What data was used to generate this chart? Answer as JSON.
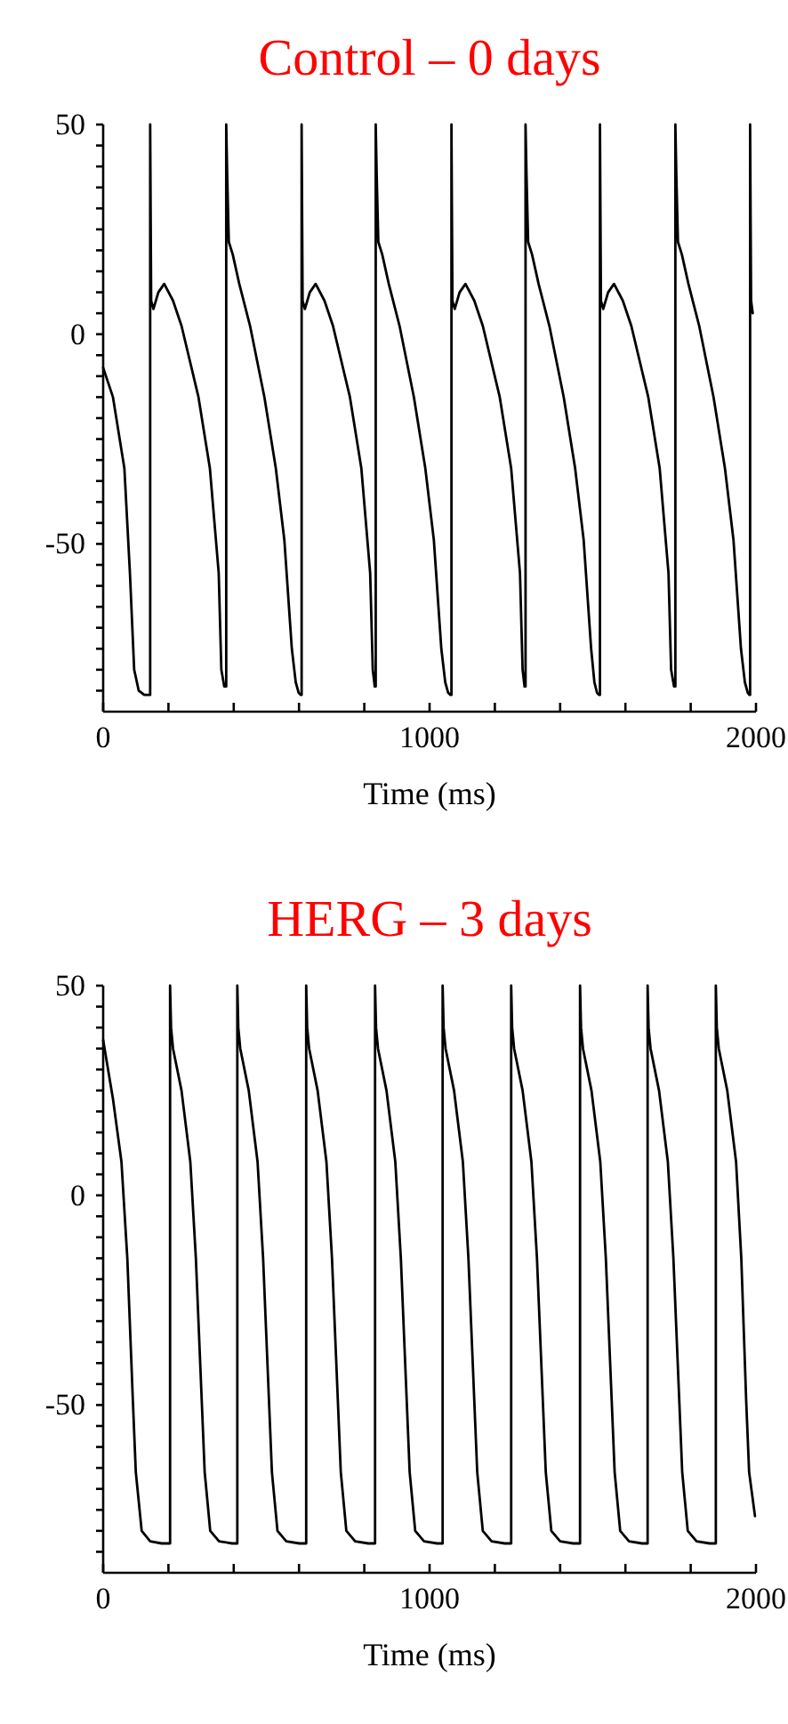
{
  "chart_data": [
    {
      "type": "line",
      "title": "Control – 0 days",
      "xlabel": "Time (ms)",
      "xlim": [
        0,
        2000
      ],
      "ylim": [
        -90,
        50
      ],
      "xticks": [
        0,
        {
          "value": 200,
          "label": null
        },
        {
          "value": 400,
          "label": null
        },
        {
          "value": 600,
          "label": null
        },
        {
          "value": 800,
          "label": null
        },
        1000,
        {
          "value": 1200,
          "label": null
        },
        {
          "value": 1400,
          "label": null
        },
        {
          "value": 1600,
          "label": null
        },
        {
          "value": 1800,
          "label": null
        },
        2000
      ],
      "yticks": [
        50,
        {
          "value": 45,
          "label": null
        },
        {
          "value": 40,
          "label": null
        },
        {
          "value": 35,
          "label": null
        },
        {
          "value": 30,
          "label": null
        },
        {
          "value": 25,
          "label": null
        },
        {
          "value": 20,
          "label": null
        },
        {
          "value": 15,
          "label": null
        },
        {
          "value": 10,
          "label": null
        },
        {
          "value": 5,
          "label": null
        },
        0,
        {
          "value": -5,
          "label": null
        },
        {
          "value": -10,
          "label": null
        },
        {
          "value": -15,
          "label": null
        },
        {
          "value": -20,
          "label": null
        },
        {
          "value": -25,
          "label": null
        },
        {
          "value": -30,
          "label": null
        },
        {
          "value": -35,
          "label": null
        },
        {
          "value": -40,
          "label": null
        },
        {
          "value": -45,
          "label": null
        },
        -50,
        {
          "value": -55,
          "label": null
        },
        {
          "value": -60,
          "label": null
        },
        {
          "value": -65,
          "label": null
        },
        {
          "value": -70,
          "label": null
        },
        {
          "value": -75,
          "label": null
        },
        {
          "value": -80,
          "label": null
        },
        {
          "value": -85,
          "label": null
        }
      ],
      "series": [
        {
          "color": "#000000",
          "x": [
            0,
            30,
            65,
            82,
            95,
            109,
            126,
            140,
            144,
            144,
            147,
            154,
            169,
            187,
            214,
            240,
            292,
            327,
            354,
            362,
            371,
            377,
            377,
            380,
            385,
            397,
            417,
            450,
            494,
            529,
            555,
            578,
            590,
            599,
            605,
            608,
            608,
            611,
            618,
            633,
            651,
            678,
            704,
            756,
            791,
            818,
            826,
            832,
            835,
            835,
            838,
            843,
            855,
            875,
            908,
            952,
            987,
            1013,
            1036,
            1048,
            1057,
            1064,
            1067,
            1067,
            1070,
            1077,
            1092,
            1110,
            1137,
            1163,
            1215,
            1250,
            1277,
            1285,
            1291,
            1294,
            1294,
            1297,
            1302,
            1314,
            1334,
            1367,
            1411,
            1446,
            1472,
            1495,
            1505,
            1513,
            1519,
            1522,
            1522,
            1525,
            1532,
            1547,
            1565,
            1592,
            1618,
            1670,
            1705,
            1732,
            1740,
            1749,
            1753,
            1753,
            1756,
            1761,
            1773,
            1793,
            1826,
            1870,
            1905,
            1931,
            1954,
            1966,
            1975,
            1980,
            1982,
            1982,
            1985,
            1990
          ],
          "values": [
            -8,
            -15,
            -32,
            -57,
            -80,
            -85,
            -86,
            -86,
            -86,
            50,
            8,
            6,
            10,
            12,
            8,
            2,
            -15,
            -32,
            -57,
            -80,
            -84,
            -84,
            50,
            38,
            22,
            19,
            12,
            2,
            -15,
            -32,
            -49,
            -75,
            -83,
            -85.5,
            -86,
            -86,
            50,
            8,
            6,
            10,
            12,
            8,
            2,
            -15,
            -32,
            -57,
            -80,
            -84,
            -84,
            50,
            38,
            22,
            19,
            12,
            2,
            -15,
            -32,
            -49,
            -75,
            -83,
            -85.5,
            -86,
            -86,
            50,
            8,
            6,
            10,
            12,
            8,
            2,
            -15,
            -32,
            -57,
            -80,
            -84,
            -84,
            50,
            38,
            22,
            19,
            12,
            2,
            -15,
            -32,
            -49,
            -75,
            -83,
            -85.5,
            -86,
            -86,
            50,
            8,
            6,
            10,
            12,
            8,
            2,
            -15,
            -32,
            -57,
            -80,
            -84,
            -84,
            50,
            38,
            22,
            19,
            12,
            2,
            -15,
            -32,
            -49,
            -75,
            -83,
            -85.5,
            -86,
            -86,
            50,
            8,
            5
          ]
        }
      ]
    },
    {
      "type": "line",
      "title": "HERG – 3 days",
      "xlabel": "Time (ms)",
      "xlim": [
        0,
        2000
      ],
      "ylim": [
        -90,
        50
      ],
      "xticks": [
        0,
        {
          "value": 200,
          "label": null
        },
        {
          "value": 400,
          "label": null
        },
        {
          "value": 600,
          "label": null
        },
        {
          "value": 800,
          "label": null
        },
        1000,
        {
          "value": 1200,
          "label": null
        },
        {
          "value": 1400,
          "label": null
        },
        {
          "value": 1600,
          "label": null
        },
        {
          "value": 1800,
          "label": null
        },
        2000
      ],
      "yticks": [
        50,
        {
          "value": 45,
          "label": null
        },
        {
          "value": 40,
          "label": null
        },
        {
          "value": 35,
          "label": null
        },
        {
          "value": 30,
          "label": null
        },
        {
          "value": 25,
          "label": null
        },
        {
          "value": 20,
          "label": null
        },
        {
          "value": 15,
          "label": null
        },
        {
          "value": 10,
          "label": null
        },
        {
          "value": 5,
          "label": null
        },
        0,
        {
          "value": -5,
          "label": null
        },
        {
          "value": -10,
          "label": null
        },
        {
          "value": -15,
          "label": null
        },
        {
          "value": -20,
          "label": null
        },
        {
          "value": -25,
          "label": null
        },
        {
          "value": -30,
          "label": null
        },
        {
          "value": -35,
          "label": null
        },
        {
          "value": -40,
          "label": null
        },
        {
          "value": -45,
          "label": null
        },
        -50,
        {
          "value": -55,
          "label": null
        },
        {
          "value": -60,
          "label": null
        },
        {
          "value": -65,
          "label": null
        },
        {
          "value": -70,
          "label": null
        },
        {
          "value": -75,
          "label": null
        },
        {
          "value": -80,
          "label": null
        },
        {
          "value": -85,
          "label": null
        }
      ],
      "series": [
        {
          "color": "#000000",
          "x": [
            0,
            30,
            56,
            74,
            91,
            100,
            118,
            144,
            179,
            205,
            205,
            208,
            214,
            240,
            267,
            284,
            302,
            311,
            328,
            355,
            395,
            411,
            411,
            414,
            420,
            446,
            473,
            490,
            508,
            517,
            534,
            561,
            601,
            622,
            622,
            625,
            631,
            657,
            684,
            701,
            719,
            728,
            745,
            772,
            812,
            833,
            833,
            836,
            842,
            868,
            895,
            912,
            930,
            939,
            956,
            983,
            1023,
            1040,
            1040,
            1043,
            1049,
            1075,
            1102,
            1119,
            1137,
            1146,
            1163,
            1190,
            1230,
            1250,
            1250,
            1253,
            1259,
            1285,
            1312,
            1329,
            1347,
            1356,
            1373,
            1400,
            1440,
            1461,
            1461,
            1464,
            1470,
            1496,
            1523,
            1540,
            1558,
            1567,
            1584,
            1611,
            1651,
            1668,
            1668,
            1671,
            1677,
            1703,
            1730,
            1747,
            1765,
            1774,
            1791,
            1818,
            1858,
            1877,
            1877,
            1880,
            1886,
            1912,
            1939,
            1955,
            1970,
            1979,
            1997
          ],
          "values": [
            37,
            23,
            8,
            -15,
            -49,
            -66,
            -80,
            -82.5,
            -83,
            -83,
            50,
            40,
            35,
            25,
            8,
            -15,
            -49,
            -66,
            -80,
            -82.5,
            -83,
            -83,
            50,
            40,
            35,
            25,
            8,
            -15,
            -49,
            -66,
            -80,
            -82.5,
            -83,
            -83,
            50,
            40,
            35,
            25,
            8,
            -15,
            -49,
            -66,
            -80,
            -82.5,
            -83,
            -83,
            50,
            40,
            35,
            25,
            8,
            -15,
            -49,
            -66,
            -80,
            -82.5,
            -83,
            -83,
            50,
            40,
            35,
            25,
            8,
            -15,
            -49,
            -66,
            -80,
            -82.5,
            -83,
            -83,
            50,
            40,
            35,
            25,
            8,
            -15,
            -49,
            -66,
            -80,
            -82.5,
            -83,
            -83,
            50,
            40,
            35,
            25,
            8,
            -15,
            -49,
            -66,
            -80,
            -82.5,
            -83,
            -83,
            50,
            40,
            35,
            25,
            8,
            -15,
            -49,
            -66,
            -80,
            -82.5,
            -83,
            -83,
            50,
            40,
            35,
            25,
            8,
            -15,
            -49,
            -66,
            -76.5
          ]
        }
      ]
    }
  ]
}
